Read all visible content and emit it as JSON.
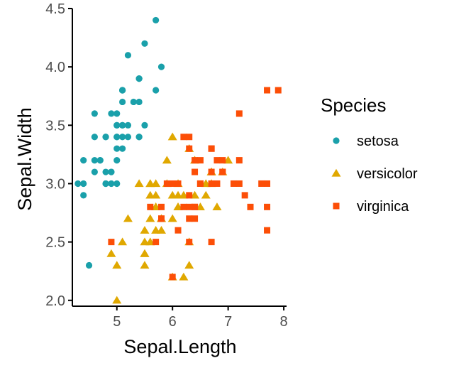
{
  "chart_data": {
    "type": "scatter",
    "xlabel": "Sepal.Length",
    "ylabel": "Sepal.Width",
    "xlim": [
      4.2,
      8.05
    ],
    "ylim": [
      1.95,
      4.5
    ],
    "x_ticks": [
      "5",
      "6",
      "7",
      "8"
    ],
    "y_ticks": [
      "2.0",
      "2.5",
      "3.0",
      "3.5",
      "4.0",
      "4.5"
    ],
    "grid": false,
    "legend": {
      "title": "Species",
      "position": "right"
    },
    "series": [
      {
        "name": "setosa",
        "color": "#1aa0aa",
        "marker": "circle",
        "points": [
          [
            5.1,
            3.5
          ],
          [
            4.9,
            3.0
          ],
          [
            4.7,
            3.2
          ],
          [
            4.6,
            3.1
          ],
          [
            5.0,
            3.6
          ],
          [
            5.4,
            3.9
          ],
          [
            4.6,
            3.4
          ],
          [
            5.0,
            3.4
          ],
          [
            4.4,
            2.9
          ],
          [
            4.9,
            3.1
          ],
          [
            5.4,
            3.7
          ],
          [
            4.8,
            3.4
          ],
          [
            4.8,
            3.0
          ],
          [
            4.3,
            3.0
          ],
          [
            5.8,
            4.0
          ],
          [
            5.7,
            4.4
          ],
          [
            5.4,
            3.9
          ],
          [
            5.1,
            3.5
          ],
          [
            5.7,
            3.8
          ],
          [
            5.1,
            3.8
          ],
          [
            5.4,
            3.4
          ],
          [
            5.1,
            3.7
          ],
          [
            4.6,
            3.6
          ],
          [
            5.1,
            3.3
          ],
          [
            4.8,
            3.4
          ],
          [
            5.0,
            3.0
          ],
          [
            5.0,
            3.4
          ],
          [
            5.2,
            3.5
          ],
          [
            5.2,
            3.4
          ],
          [
            4.7,
            3.2
          ],
          [
            4.8,
            3.1
          ],
          [
            5.4,
            3.4
          ],
          [
            5.2,
            4.1
          ],
          [
            5.5,
            4.2
          ],
          [
            4.9,
            3.1
          ],
          [
            5.0,
            3.2
          ],
          [
            5.5,
            3.5
          ],
          [
            4.9,
            3.6
          ],
          [
            4.4,
            3.0
          ],
          [
            5.1,
            3.4
          ],
          [
            5.0,
            3.5
          ],
          [
            4.5,
            2.3
          ],
          [
            4.4,
            3.2
          ],
          [
            5.0,
            3.5
          ],
          [
            5.1,
            3.8
          ],
          [
            4.8,
            3.0
          ],
          [
            5.1,
            3.8
          ],
          [
            4.6,
            3.2
          ],
          [
            5.3,
            3.7
          ],
          [
            5.0,
            3.3
          ]
        ]
      },
      {
        "name": "versicolor",
        "color": "#e0a800",
        "marker": "triangle",
        "points": [
          [
            7.0,
            3.2
          ],
          [
            6.4,
            3.2
          ],
          [
            6.9,
            3.1
          ],
          [
            5.5,
            2.3
          ],
          [
            6.5,
            2.8
          ],
          [
            5.7,
            2.8
          ],
          [
            6.3,
            3.3
          ],
          [
            4.9,
            2.4
          ],
          [
            6.6,
            2.9
          ],
          [
            5.2,
            2.7
          ],
          [
            5.0,
            2.0
          ],
          [
            5.9,
            3.0
          ],
          [
            6.0,
            2.2
          ],
          [
            6.1,
            2.9
          ],
          [
            5.6,
            2.9
          ],
          [
            6.7,
            3.1
          ],
          [
            5.6,
            3.0
          ],
          [
            5.8,
            2.7
          ],
          [
            6.2,
            2.2
          ],
          [
            5.6,
            2.5
          ],
          [
            5.9,
            3.2
          ],
          [
            6.1,
            2.8
          ],
          [
            6.3,
            2.5
          ],
          [
            6.1,
            2.8
          ],
          [
            6.4,
            2.9
          ],
          [
            6.6,
            3.0
          ],
          [
            6.8,
            2.8
          ],
          [
            6.7,
            3.0
          ],
          [
            6.0,
            2.9
          ],
          [
            5.7,
            2.6
          ],
          [
            5.5,
            2.4
          ],
          [
            5.5,
            2.4
          ],
          [
            5.8,
            2.7
          ],
          [
            6.0,
            2.7
          ],
          [
            5.4,
            3.0
          ],
          [
            6.0,
            3.4
          ],
          [
            6.7,
            3.1
          ],
          [
            6.3,
            2.3
          ],
          [
            5.6,
            3.0
          ],
          [
            5.5,
            2.5
          ],
          [
            5.5,
            2.6
          ],
          [
            6.1,
            3.0
          ],
          [
            5.8,
            2.6
          ],
          [
            5.0,
            2.3
          ],
          [
            5.6,
            2.7
          ],
          [
            5.7,
            3.0
          ],
          [
            5.7,
            2.9
          ],
          [
            6.2,
            2.9
          ],
          [
            5.1,
            2.5
          ],
          [
            5.7,
            2.8
          ]
        ]
      },
      {
        "name": "virginica",
        "color": "#fc4e07",
        "marker": "square",
        "points": [
          [
            6.3,
            3.3
          ],
          [
            5.8,
            2.7
          ],
          [
            7.1,
            3.0
          ],
          [
            6.3,
            2.9
          ],
          [
            6.5,
            3.0
          ],
          [
            7.6,
            3.0
          ],
          [
            4.9,
            2.5
          ],
          [
            7.3,
            2.9
          ],
          [
            6.7,
            2.5
          ],
          [
            7.2,
            3.6
          ],
          [
            6.5,
            3.2
          ],
          [
            6.4,
            2.7
          ],
          [
            6.8,
            3.0
          ],
          [
            5.7,
            2.5
          ],
          [
            5.8,
            2.8
          ],
          [
            6.4,
            3.2
          ],
          [
            6.5,
            3.0
          ],
          [
            7.7,
            3.8
          ],
          [
            7.7,
            2.6
          ],
          [
            6.0,
            2.2
          ],
          [
            6.9,
            3.2
          ],
          [
            5.6,
            2.8
          ],
          [
            7.7,
            2.8
          ],
          [
            6.3,
            2.7
          ],
          [
            6.7,
            3.3
          ],
          [
            7.2,
            3.2
          ],
          [
            6.2,
            2.8
          ],
          [
            6.1,
            3.0
          ],
          [
            6.4,
            2.8
          ],
          [
            7.2,
            3.0
          ],
          [
            7.4,
            2.8
          ],
          [
            7.9,
            3.8
          ],
          [
            6.4,
            2.8
          ],
          [
            6.3,
            2.8
          ],
          [
            6.1,
            2.6
          ],
          [
            7.7,
            3.0
          ],
          [
            6.3,
            3.4
          ],
          [
            6.4,
            3.1
          ],
          [
            6.0,
            3.0
          ],
          [
            6.9,
            3.1
          ],
          [
            6.7,
            3.1
          ],
          [
            6.9,
            3.1
          ],
          [
            5.8,
            2.7
          ],
          [
            6.8,
            3.2
          ],
          [
            6.7,
            3.3
          ],
          [
            6.7,
            3.0
          ],
          [
            6.3,
            2.5
          ],
          [
            6.5,
            3.0
          ],
          [
            6.2,
            3.4
          ],
          [
            5.9,
            3.0
          ]
        ]
      }
    ]
  }
}
